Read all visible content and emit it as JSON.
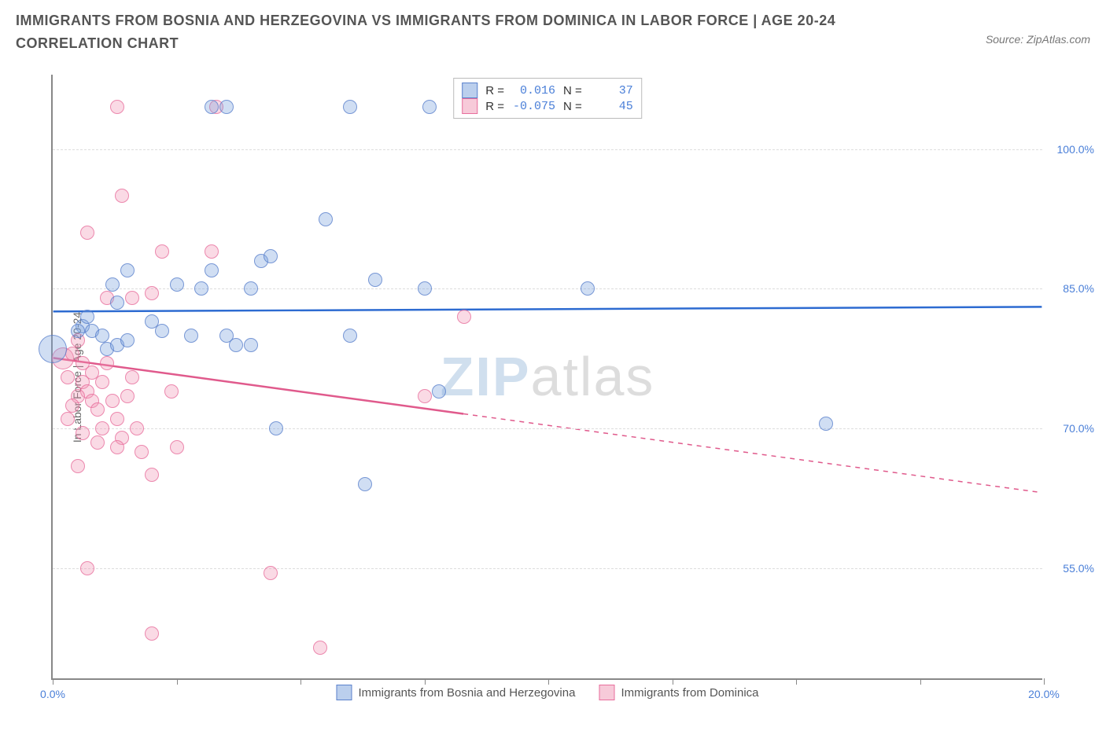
{
  "header": {
    "title": "IMMIGRANTS FROM BOSNIA AND HERZEGOVINA VS IMMIGRANTS FROM DOMINICA IN LABOR FORCE | AGE 20-24 CORRELATION CHART",
    "source": "Source: ZipAtlas.com"
  },
  "axes": {
    "ylabel": "In Labor Force | Age 20-24",
    "y_grid": [
      {
        "value": 100.0,
        "label": "100.0%"
      },
      {
        "value": 85.0,
        "label": "85.0%"
      },
      {
        "value": 70.0,
        "label": "70.0%"
      },
      {
        "value": 55.0,
        "label": "55.0%"
      }
    ],
    "y_domain": [
      43,
      108
    ],
    "x_domain": [
      0,
      20
    ],
    "x_ticks": [
      0,
      2.5,
      5.0,
      7.5,
      10.0,
      12.5,
      15.0,
      17.5,
      20.0
    ],
    "x_labels": [
      {
        "value": 0,
        "label": "0.0%"
      },
      {
        "value": 20,
        "label": "20.0%"
      }
    ]
  },
  "style": {
    "series_a_fill": "rgba(120,160,220,0.35)",
    "series_a_stroke": "#5a8cd8",
    "series_b_fill": "rgba(240,150,180,0.35)",
    "series_b_stroke": "#e67aa5",
    "trend_a_color": "#2d6bd1",
    "trend_b_color": "#e05a8c",
    "point_radius": 9,
    "big_point_radius": 18
  },
  "series_a": {
    "name": "Immigrants from Bosnia and Herzegovina",
    "r": "0.016",
    "n": "37",
    "trend": {
      "x1": 0,
      "y1": 82.5,
      "x2": 20,
      "y2": 83.0,
      "solid_until_x": 20
    },
    "points": [
      {
        "x": 0.0,
        "y": 78.5,
        "r": 18
      },
      {
        "x": 3.2,
        "y": 104.5
      },
      {
        "x": 3.5,
        "y": 104.5
      },
      {
        "x": 7.6,
        "y": 104.5
      },
      {
        "x": 6.0,
        "y": 104.5
      },
      {
        "x": 1.2,
        "y": 85.5
      },
      {
        "x": 1.3,
        "y": 83.5
      },
      {
        "x": 1.5,
        "y": 87.0
      },
      {
        "x": 2.2,
        "y": 80.5
      },
      {
        "x": 2.5,
        "y": 85.5
      },
      {
        "x": 2.8,
        "y": 80.0
      },
      {
        "x": 3.0,
        "y": 85.0
      },
      {
        "x": 3.2,
        "y": 87.0
      },
      {
        "x": 3.5,
        "y": 80.0
      },
      {
        "x": 3.7,
        "y": 79.0
      },
      {
        "x": 4.2,
        "y": 88.0
      },
      {
        "x": 4.4,
        "y": 88.5
      },
      {
        "x": 4.5,
        "y": 70.0
      },
      {
        "x": 5.5,
        "y": 92.5
      },
      {
        "x": 6.0,
        "y": 80.0
      },
      {
        "x": 6.5,
        "y": 86.0
      },
      {
        "x": 7.5,
        "y": 85.0
      },
      {
        "x": 7.8,
        "y": 74.0
      },
      {
        "x": 6.3,
        "y": 64.0
      },
      {
        "x": 10.8,
        "y": 85.0
      },
      {
        "x": 15.6,
        "y": 70.5
      },
      {
        "x": 0.6,
        "y": 81.0
      },
      {
        "x": 0.8,
        "y": 80.5
      },
      {
        "x": 1.0,
        "y": 80.0
      },
      {
        "x": 1.1,
        "y": 78.5
      },
      {
        "x": 1.3,
        "y": 79.0
      },
      {
        "x": 1.5,
        "y": 79.5
      },
      {
        "x": 4.0,
        "y": 79.0
      },
      {
        "x": 2.0,
        "y": 81.5
      },
      {
        "x": 0.5,
        "y": 80.5
      },
      {
        "x": 0.7,
        "y": 82.0
      },
      {
        "x": 4.0,
        "y": 85.0
      }
    ]
  },
  "series_b": {
    "name": "Immigrants from Dominica",
    "r": "-0.075",
    "n": "45",
    "trend": {
      "x1": 0,
      "y1": 77.5,
      "x2": 20,
      "y2": 63.0,
      "solid_until_x": 8.3
    },
    "points": [
      {
        "x": 0.2,
        "y": 77.5,
        "r": 14
      },
      {
        "x": 1.3,
        "y": 104.5
      },
      {
        "x": 3.3,
        "y": 104.5
      },
      {
        "x": 1.4,
        "y": 95.0
      },
      {
        "x": 0.7,
        "y": 91.0
      },
      {
        "x": 2.2,
        "y": 89.0
      },
      {
        "x": 3.2,
        "y": 89.0
      },
      {
        "x": 2.0,
        "y": 84.5
      },
      {
        "x": 0.5,
        "y": 79.5
      },
      {
        "x": 0.6,
        "y": 77.0
      },
      {
        "x": 0.8,
        "y": 76.0
      },
      {
        "x": 0.6,
        "y": 75.0
      },
      {
        "x": 0.7,
        "y": 74.0
      },
      {
        "x": 0.5,
        "y": 73.5
      },
      {
        "x": 0.8,
        "y": 73.0
      },
      {
        "x": 0.4,
        "y": 72.5
      },
      {
        "x": 1.0,
        "y": 75.0
      },
      {
        "x": 1.2,
        "y": 73.0
      },
      {
        "x": 1.0,
        "y": 70.0
      },
      {
        "x": 1.4,
        "y": 69.0
      },
      {
        "x": 1.5,
        "y": 73.5
      },
      {
        "x": 1.7,
        "y": 70.0
      },
      {
        "x": 0.9,
        "y": 68.5
      },
      {
        "x": 0.6,
        "y": 69.5
      },
      {
        "x": 0.3,
        "y": 71.0
      },
      {
        "x": 0.3,
        "y": 75.5
      },
      {
        "x": 0.5,
        "y": 66.0
      },
      {
        "x": 1.8,
        "y": 67.5
      },
      {
        "x": 2.4,
        "y": 74.0
      },
      {
        "x": 2.0,
        "y": 65.0
      },
      {
        "x": 8.3,
        "y": 82.0
      },
      {
        "x": 7.5,
        "y": 73.5
      },
      {
        "x": 0.7,
        "y": 55.0
      },
      {
        "x": 2.0,
        "y": 48.0
      },
      {
        "x": 4.4,
        "y": 54.5
      },
      {
        "x": 5.4,
        "y": 46.5
      },
      {
        "x": 1.1,
        "y": 84.0
      },
      {
        "x": 1.6,
        "y": 84.0
      },
      {
        "x": 1.3,
        "y": 71.0
      },
      {
        "x": 1.6,
        "y": 75.5
      },
      {
        "x": 2.5,
        "y": 68.0
      },
      {
        "x": 1.1,
        "y": 77.0
      },
      {
        "x": 0.4,
        "y": 78.0
      },
      {
        "x": 0.9,
        "y": 72.0
      },
      {
        "x": 1.3,
        "y": 68.0
      }
    ]
  },
  "legend": {
    "r_label": "R =",
    "n_label": "N ="
  },
  "watermark": {
    "left": "ZIP",
    "right": "atlas"
  }
}
